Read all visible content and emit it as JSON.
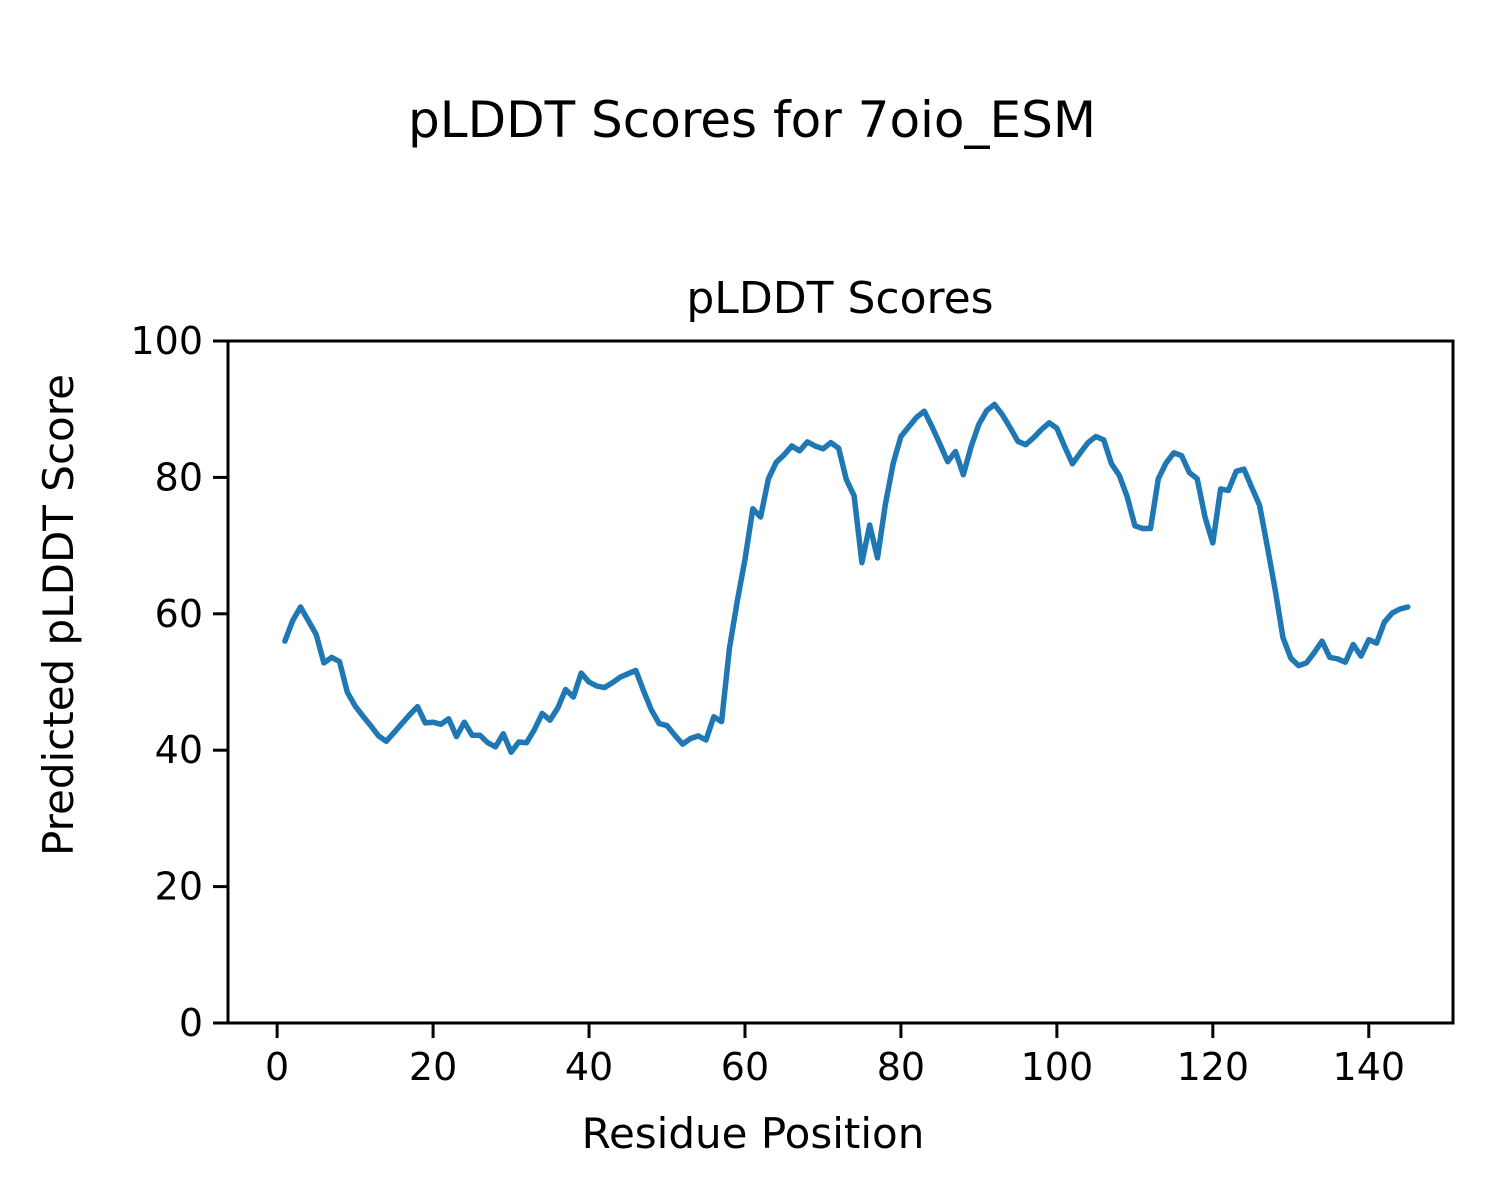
{
  "chart_data": {
    "type": "line",
    "figure_title": "pLDDT Scores for 7oio_ESM",
    "axes_title": "pLDDT Scores",
    "xlabel": "Residue Position",
    "ylabel": "Predicted pLDDT Score",
    "grid": false,
    "legend_position": "none",
    "line_color": "#1f77b4",
    "background_color": "#ffffff",
    "spine_color": "#000000",
    "x_tick_labels": [
      "0",
      "20",
      "40",
      "60",
      "80",
      "100",
      "120",
      "140"
    ],
    "y_tick_labels": [
      "0",
      "20",
      "40",
      "60",
      "80",
      "100"
    ],
    "x_ticks": [
      0,
      20,
      40,
      60,
      80,
      100,
      120,
      140
    ],
    "y_ticks": [
      0,
      20,
      40,
      60,
      80,
      100
    ],
    "xlim": [
      -6.3,
      150.8
    ],
    "ylim": [
      0,
      100
    ],
    "x_start": 1,
    "series": [
      {
        "name": "pLDDT",
        "values": [
          56.0,
          59.0,
          61.0,
          59.0,
          57.0,
          52.8,
          53.6,
          53.0,
          48.5,
          46.5,
          45.0,
          43.6,
          42.1,
          41.3,
          42.6,
          43.9,
          45.2,
          46.4,
          44.0,
          44.1,
          43.8,
          44.6,
          42.0,
          44.1,
          42.2,
          42.2,
          41.1,
          40.5,
          42.4,
          39.7,
          41.2,
          41.1,
          43.0,
          45.4,
          44.4,
          46.2,
          48.9,
          47.8,
          51.3,
          50.0,
          49.4,
          49.2,
          49.9,
          50.7,
          51.2,
          51.7,
          48.7,
          45.9,
          43.9,
          43.6,
          42.2,
          40.9,
          41.7,
          42.1,
          41.5,
          44.9,
          44.2,
          54.9,
          61.8,
          68.0,
          75.4,
          74.2,
          79.8,
          82.2,
          83.3,
          84.6,
          83.9,
          85.2,
          84.6,
          84.2,
          85.1,
          84.3,
          79.7,
          77.3,
          67.5,
          73.0,
          68.2,
          76.0,
          82.0,
          86.0,
          87.4,
          88.8,
          89.7,
          87.4,
          84.9,
          82.3,
          83.8,
          80.4,
          84.5,
          87.8,
          89.8,
          90.7,
          89.2,
          87.3,
          85.3,
          84.8,
          85.8,
          87.0,
          88.0,
          87.2,
          84.5,
          82.0,
          83.6,
          85.1,
          86.0,
          85.5,
          82.0,
          80.3,
          77.2,
          72.9,
          72.5,
          72.5,
          79.8,
          82.1,
          83.6,
          83.2,
          80.7,
          79.8,
          74.2,
          70.4,
          78.3,
          78.1,
          80.9,
          81.2,
          78.5,
          75.9,
          69.8,
          63.5,
          56.5,
          53.5,
          52.4,
          52.8,
          54.3,
          56.0,
          53.6,
          53.4,
          52.9,
          55.5,
          53.8,
          56.2,
          55.7,
          58.8,
          60.1,
          60.7,
          61.0
        ]
      }
    ]
  }
}
